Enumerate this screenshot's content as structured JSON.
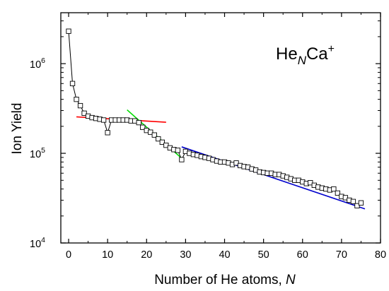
{
  "chart_data": {
    "type": "scatter",
    "title": "",
    "annotation": {
      "base": "He",
      "sub": "N",
      "rest": "Ca",
      "sup": "+"
    },
    "xlabel": {
      "prefix": "Number of He atoms, ",
      "var": "N"
    },
    "ylabel": "Ion Yield",
    "xlim": [
      -2,
      80
    ],
    "ylim": [
      10000,
      3700000
    ],
    "y_scale": "log",
    "grid": false,
    "legend": "none",
    "x_ticks": [
      0,
      10,
      20,
      30,
      40,
      50,
      60,
      70,
      80
    ],
    "x_tick_labels": [
      "0",
      "10",
      "20",
      "30",
      "40",
      "50",
      "60",
      "70",
      "80"
    ],
    "y_ticks": [
      {
        "base": "10",
        "exp": "4",
        "value": 10000
      },
      {
        "base": "10",
        "exp": "5",
        "value": 100000
      },
      {
        "base": "10",
        "exp": "6",
        "value": 1000000
      }
    ],
    "series": [
      {
        "marker": "open-square",
        "color": "#000000",
        "connected": true,
        "x": [
          0,
          1,
          2,
          3,
          4,
          5,
          6,
          7,
          8,
          9,
          10,
          11,
          12,
          13,
          14,
          15,
          16,
          17,
          18,
          19,
          20,
          21,
          22,
          23,
          24,
          25,
          26,
          27,
          28,
          29,
          30,
          31,
          32,
          33,
          34,
          35,
          36,
          37,
          38,
          39,
          40,
          41,
          42,
          43,
          44,
          45,
          46,
          47,
          48,
          49,
          50,
          51,
          52,
          53,
          54,
          55,
          56,
          57,
          58,
          59,
          60,
          61,
          62,
          63,
          64,
          65,
          66,
          67,
          68,
          69,
          70,
          71,
          72,
          73,
          74,
          75
        ],
        "y": [
          2300000,
          600000,
          400000,
          340000,
          280000,
          260000,
          250000,
          245000,
          240000,
          235000,
          170000,
          235000,
          235000,
          235000,
          235000,
          235000,
          230000,
          230000,
          220000,
          195000,
          180000,
          172000,
          160000,
          145000,
          133000,
          123000,
          115000,
          110000,
          108000,
          85000,
          105000,
          100000,
          97000,
          95000,
          92000,
          90000,
          88000,
          85000,
          82000,
          80000,
          80000,
          78000,
          75000,
          78000,
          73000,
          71000,
          70000,
          67000,
          65000,
          62000,
          61000,
          60000,
          60000,
          58000,
          58000,
          56000,
          54000,
          52000,
          50000,
          50000,
          48000,
          46000,
          47000,
          44000,
          42000,
          41000,
          40000,
          39000,
          40000,
          36000,
          33000,
          32000,
          30000,
          29000,
          26000,
          28000
        ]
      }
    ],
    "fits": [
      {
        "color": "#ff0000",
        "x": [
          2,
          25
        ],
        "y": [
          255000,
          222000
        ]
      },
      {
        "color": "#00dd00",
        "x": [
          15,
          29
        ],
        "y": [
          305000,
          88000
        ]
      },
      {
        "color": "#0000cc",
        "x": [
          29,
          76
        ],
        "y": [
          118000,
          24000
        ]
      }
    ]
  }
}
